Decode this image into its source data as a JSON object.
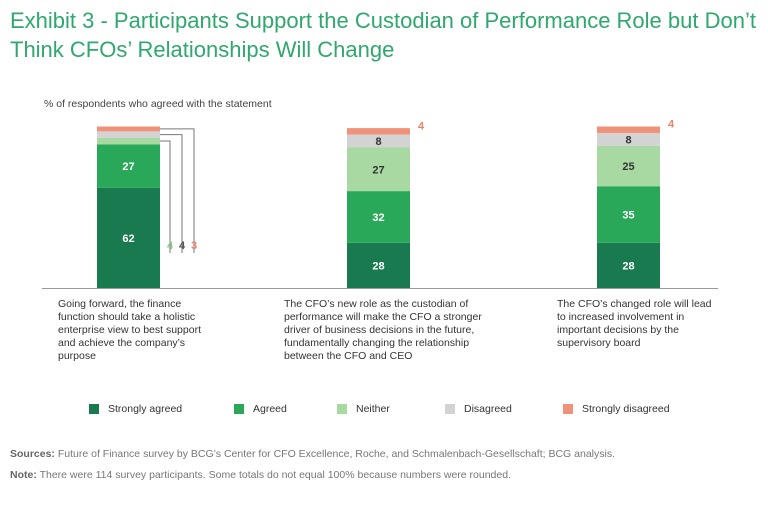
{
  "title": "Exhibit 3 - Participants Support the Custodian of Performance Role but Don’t Think CFOs’ Relationships Will Change",
  "chart_data": {
    "type": "stacked-bar",
    "subtitle": "% of respondents who agreed with the statement",
    "categories": [
      "Going forward, the finance function should take a holistic enterprise view to best support and achieve the company’s purpose",
      "The CFO’s new role as the custodian of performance will make the CFO a stronger driver of business decisions in the future, fundamentally changing the relationship between the CFO and CEO",
      "The CFO’s changed role will lead to increased involvement in important decisions by the supervisory board"
    ],
    "series": [
      {
        "name": "Strongly agreed",
        "color": "#197a4f",
        "values": [
          62,
          28,
          28
        ]
      },
      {
        "name": "Agreed",
        "color": "#29a85a",
        "values": [
          27,
          32,
          35
        ]
      },
      {
        "name": "Neither",
        "color": "#a9d9a3",
        "values": [
          4,
          27,
          25
        ]
      },
      {
        "name": "Disagreed",
        "color": "#d3d3d3",
        "values": [
          4,
          8,
          8
        ]
      },
      {
        "name": "Strongly disagreed",
        "color": "#f0917a",
        "values": [
          3,
          4,
          4
        ]
      }
    ],
    "label_colors": {
      "Neither": "#8cc98a",
      "Disagreed": "#555555",
      "Strongly disagreed": "#e8826a"
    }
  },
  "footer": {
    "sources_label": "Sources:",
    "sources_text": " Future of Finance survey by BCG’s Center for CFO Excellence, Roche, and Schmalenbach-Gesellschaft; BCG analysis.",
    "note_label": "Note:",
    "note_text": " There were 114 survey participants. Some totals do not equal 100% because numbers were rounded."
  }
}
